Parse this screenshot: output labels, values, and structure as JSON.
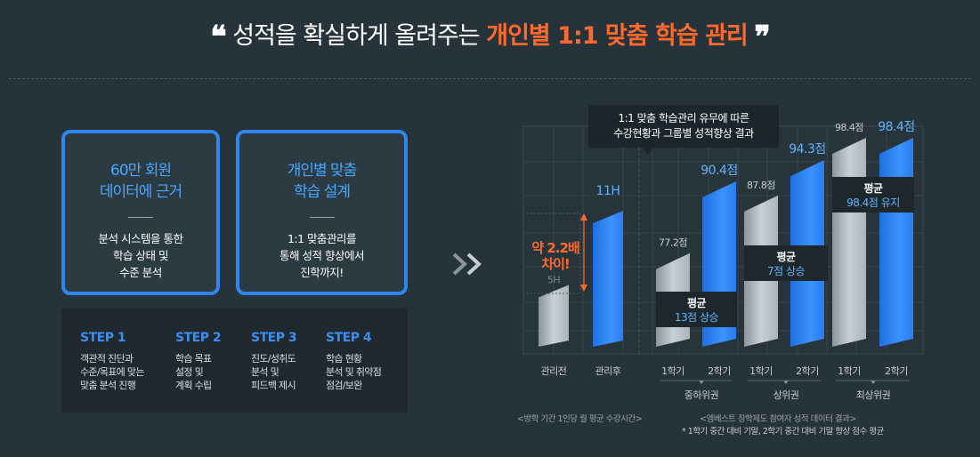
{
  "headline": {
    "prefix": "성적을 확실하게 올려주는",
    "accent": "개인별 1:1 맞춤 학습 관리",
    "open_quote": "❝",
    "close_quote": "❞"
  },
  "cards": [
    {
      "title_line1": "60만 회원",
      "title_line2": "데이터에 근거",
      "desc_line1": "분석 시스템을 통한",
      "desc_line2": "학습 상태 및",
      "desc_line3": "수준 분석"
    },
    {
      "title_line1": "개인별 맞춤",
      "title_line2": "학습 설계",
      "desc_line1": "1:1 맞춤관리를",
      "desc_line2": "통해 성적 향상에서",
      "desc_line3": "진학까지!"
    }
  ],
  "steps": [
    {
      "label": "STEP 1",
      "line1": "객관적 진단과",
      "line2": "수준/목표에 맞는",
      "line3": "맞춤 분석 진행"
    },
    {
      "label": "STEP 2",
      "line1": "학습 목표",
      "line2": "설정 및",
      "line3": "계획 수립"
    },
    {
      "label": "STEP 3",
      "line1": "진도/성취도",
      "line2": "분석 및",
      "line3": "피드백 제시"
    },
    {
      "label": "STEP 4",
      "line1": "학습 현황",
      "line2": "분석 및 취약점",
      "line3": "점검/보완"
    }
  ],
  "bubble": {
    "line1": "1:1 맞춤 학습관리 유무에 따른",
    "line2": "수강현황과 그룹별 성적향상 결과"
  },
  "gap_label": {
    "line1": "약 2.2배",
    "line2": "차이!"
  },
  "callouts": [
    {
      "title": "평균",
      "value": "13점 상승"
    },
    {
      "title": "평균",
      "value": "7점 상승"
    },
    {
      "title": "평균",
      "value": "98.4점 유지"
    }
  ],
  "notes": {
    "left": "<방학 기간 1인당 월 평균 수강시간>",
    "right": "<엠베스트 장학제도 참여자 성적 데이터 결과>",
    "right_sub": "* 1학기 중간 대비 기말, 2학기 중간 대비 기말 향상 점수 평균"
  },
  "chart_data": [
    {
      "type": "bar",
      "title": "방학 기간 1인당 월 평균 수강시간",
      "categories": [
        "관리전",
        "관리후"
      ],
      "values": [
        5,
        11
      ],
      "value_labels": [
        "5H",
        "11H"
      ],
      "unit": "H"
    },
    {
      "type": "bar",
      "title": "엠베스트 장학제도 참여자 성적 데이터 결과",
      "groups": [
        "중하위권",
        "상위권",
        "최상위권"
      ],
      "categories": [
        "1학기",
        "2학기"
      ],
      "series": [
        {
          "group": "중하위권",
          "values": [
            77.2,
            90.4
          ],
          "value_labels": [
            "77.2점",
            "90.4점"
          ]
        },
        {
          "group": "상위권",
          "values": [
            87.8,
            94.3
          ],
          "value_labels": [
            "87.8점",
            "94.3점"
          ]
        },
        {
          "group": "최상위권",
          "values": [
            98.4,
            98.4
          ],
          "value_labels": [
            "98.4점",
            "98.4점"
          ]
        }
      ]
    }
  ],
  "colors": {
    "accent": "#ff6a2c",
    "blue": "#2f86ef",
    "grey_bar": "#b7c1c6",
    "bg": "#27333a"
  }
}
